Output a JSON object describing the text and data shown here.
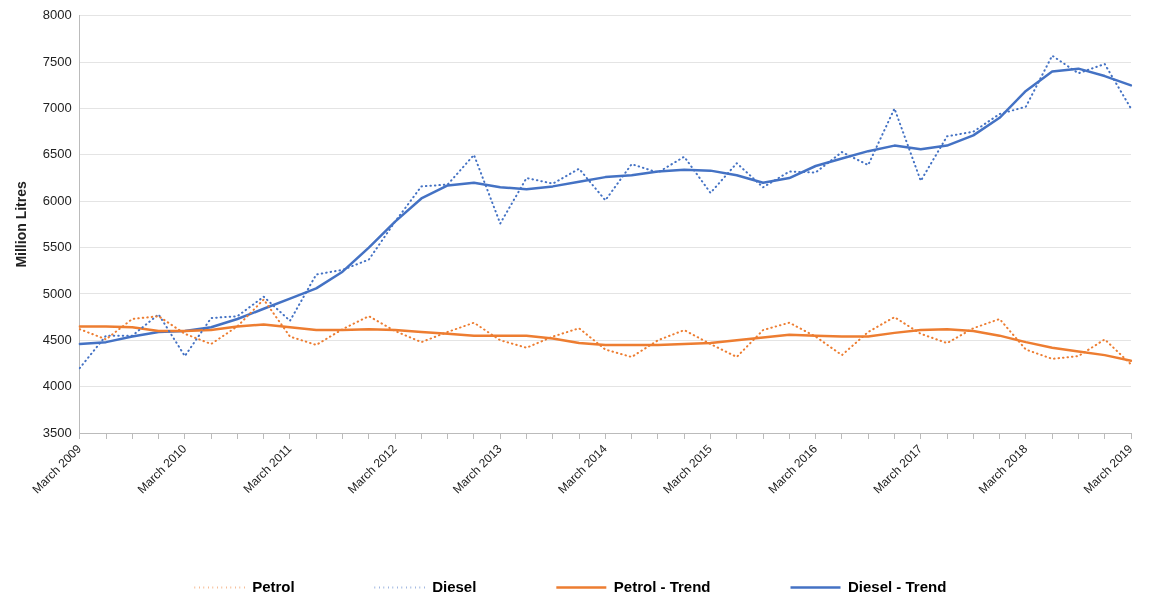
{
  "chart_data": {
    "type": "line",
    "ylabel": "Million Litres",
    "categories": [
      "March 2009",
      null,
      null,
      null,
      "March 2010",
      null,
      null,
      null,
      "March 2011",
      null,
      null,
      null,
      "March 2012",
      null,
      null,
      null,
      "March 2013",
      null,
      null,
      null,
      "March 2014",
      null,
      null,
      null,
      "March 2015",
      null,
      null,
      null,
      "March 2016",
      null,
      null,
      null,
      "March 2017",
      null,
      null,
      null,
      "March 2018",
      null,
      null,
      null,
      "March 2019"
    ],
    "series": [
      {
        "name": "Petrol",
        "color": "#ed7d31",
        "line_style": "dotted",
        "values": [
          4620,
          4510,
          4730,
          4760,
          4570,
          4460,
          4650,
          4940,
          4540,
          4450,
          4620,
          4760,
          4600,
          4480,
          4590,
          4690,
          4500,
          4420,
          4540,
          4630,
          4400,
          4320,
          4500,
          4610,
          4460,
          4320,
          4610,
          4690,
          4540,
          4340,
          4590,
          4750,
          4570,
          4470,
          4630,
          4730,
          4400,
          4300,
          4330,
          4510,
          4240
        ]
      },
      {
        "name": "Diesel",
        "color": "#4472c4",
        "line_style": "dotted",
        "values": [
          4200,
          4550,
          4550,
          4780,
          4330,
          4740,
          4760,
          4970,
          4710,
          5210,
          5260,
          5370,
          5780,
          6160,
          6180,
          6500,
          5760,
          6250,
          6190,
          6350,
          6010,
          6400,
          6310,
          6480,
          6090,
          6410,
          6150,
          6320,
          6310,
          6530,
          6390,
          7000,
          6220,
          6700,
          6750,
          6940,
          7020,
          7570,
          7380,
          7480,
          7000
        ]
      },
      {
        "name": "Petrol - Trend",
        "color": "#ed7d31",
        "line_style": "solid",
        "values": [
          4650,
          4650,
          4640,
          4600,
          4600,
          4610,
          4650,
          4670,
          4640,
          4610,
          4610,
          4620,
          4610,
          4590,
          4570,
          4550,
          4550,
          4550,
          4520,
          4470,
          4450,
          4450,
          4450,
          4460,
          4470,
          4500,
          4530,
          4560,
          4550,
          4540,
          4540,
          4580,
          4610,
          4620,
          4600,
          4550,
          4480,
          4420,
          4380,
          4340,
          4280
        ]
      },
      {
        "name": "Diesel - Trend",
        "color": "#4472c4",
        "line_style": "solid",
        "values": [
          4460,
          4480,
          4540,
          4590,
          4600,
          4640,
          4730,
          4840,
          4950,
          5060,
          5240,
          5500,
          5780,
          6030,
          6170,
          6200,
          6150,
          6130,
          6160,
          6210,
          6260,
          6280,
          6320,
          6340,
          6330,
          6280,
          6200,
          6250,
          6380,
          6460,
          6540,
          6600,
          6560,
          6600,
          6710,
          6900,
          7190,
          7400,
          7430,
          7350,
          7250
        ]
      }
    ],
    "ylim": [
      3500,
      8000
    ],
    "yticks": [
      3500,
      4000,
      4500,
      5000,
      5500,
      6000,
      6500,
      7000,
      7500,
      8000
    ],
    "grid": "y",
    "legend": "bottom",
    "marker": "none"
  }
}
